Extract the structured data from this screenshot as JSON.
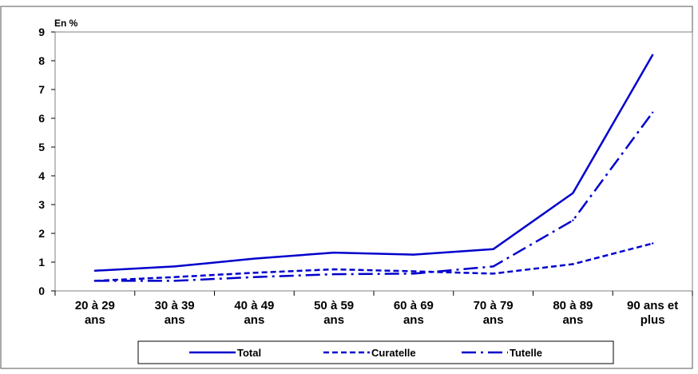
{
  "chart_data": {
    "type": "line",
    "ylabel": "En %",
    "ylim": [
      0,
      9
    ],
    "yticks": [
      "0",
      "1",
      "2",
      "3",
      "4",
      "5",
      "6",
      "7",
      "8",
      "9"
    ],
    "grid": false,
    "legend_position": "bottom",
    "categories": [
      [
        "20 à 29",
        "ans"
      ],
      [
        "30 à 39",
        "ans"
      ],
      [
        "40 à 49",
        "ans"
      ],
      [
        "50 à 59",
        "ans"
      ],
      [
        "60 à 69",
        "ans"
      ],
      [
        "70 à 79",
        "ans"
      ],
      [
        "80 à 89",
        "ans"
      ],
      [
        "90 ans et",
        "plus"
      ]
    ],
    "series": [
      {
        "name": "Total",
        "dash": "solid",
        "values": [
          0.7,
          0.85,
          1.12,
          1.33,
          1.26,
          1.45,
          3.4,
          8.2
        ]
      },
      {
        "name": "Curatelle",
        "dash": "dashed",
        "values": [
          0.35,
          0.48,
          0.63,
          0.75,
          0.68,
          0.6,
          0.93,
          1.65
        ]
      },
      {
        "name": "Tutelle",
        "dash": "dashdot",
        "values": [
          0.35,
          0.35,
          0.48,
          0.58,
          0.6,
          0.85,
          2.45,
          6.2
        ]
      }
    ],
    "color": "#0000cc"
  }
}
